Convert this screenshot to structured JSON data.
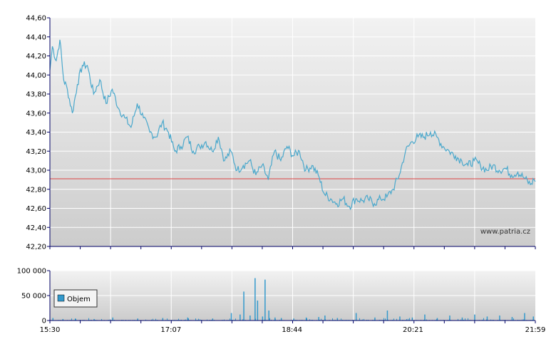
{
  "chart_data": [
    {
      "type": "line",
      "ylim": [
        42.2,
        44.6
      ],
      "y_ticks": [
        "44,60",
        "44,40",
        "44,20",
        "44,00",
        "43,80",
        "43,60",
        "43,40",
        "43,20",
        "43,00",
        "42,80",
        "42,60",
        "42,40",
        "42,20"
      ],
      "x_range": [
        "15:30",
        "21:59"
      ],
      "reference_line": 42.91,
      "grid": true,
      "colors": {
        "line": "#4aa8cc",
        "reference": "#dd4444",
        "axis": "#000066"
      },
      "watermark": "www.patria.cz",
      "series": [
        {
          "x": [
            "15:30",
            "15:32",
            "15:35",
            "15:38",
            "15:41",
            "15:44",
            "15:48",
            "15:52",
            "15:56",
            "16:00",
            "16:05",
            "16:10",
            "16:15",
            "16:20",
            "16:25",
            "16:30",
            "16:35",
            "16:40",
            "16:45",
            "16:50",
            "16:55",
            "17:00",
            "17:05",
            "17:10",
            "17:15",
            "17:20",
            "17:25",
            "17:30",
            "17:35",
            "17:40",
            "17:45",
            "17:50",
            "17:55",
            "18:00",
            "18:05",
            "18:10",
            "18:15",
            "18:20",
            "18:25",
            "18:30",
            "18:35",
            "18:40",
            "18:45",
            "18:50",
            "18:55",
            "19:00",
            "19:05",
            "19:10",
            "19:15",
            "19:20",
            "19:25",
            "19:30",
            "19:35",
            "19:40",
            "19:45",
            "19:50",
            "19:55",
            "20:00",
            "20:05",
            "20:10",
            "20:15",
            "20:20",
            "20:25",
            "20:30",
            "20:35",
            "20:40",
            "20:45",
            "20:50",
            "20:55",
            "21:00",
            "21:05",
            "21:10",
            "21:15",
            "21:20",
            "21:25",
            "21:30",
            "21:35",
            "21:40",
            "21:45",
            "21:50",
            "21:55",
            "21:58",
            "21:59"
          ],
          "values": [
            44.05,
            44.3,
            44.15,
            44.37,
            43.95,
            43.85,
            43.6,
            43.9,
            44.1,
            44.1,
            43.8,
            43.95,
            43.7,
            43.85,
            43.65,
            43.55,
            43.45,
            43.7,
            43.55,
            43.4,
            43.35,
            43.5,
            43.4,
            43.2,
            43.25,
            43.35,
            43.2,
            43.25,
            43.3,
            43.2,
            43.35,
            43.1,
            43.2,
            43.0,
            43.05,
            43.1,
            42.95,
            43.05,
            42.9,
            43.2,
            43.1,
            43.25,
            43.15,
            43.2,
            43.0,
            43.05,
            42.95,
            42.75,
            42.7,
            42.65,
            42.7,
            42.62,
            42.7,
            42.68,
            42.7,
            42.65,
            42.7,
            42.72,
            42.8,
            42.95,
            43.2,
            43.3,
            43.35,
            43.35,
            43.4,
            43.35,
            43.25,
            43.2,
            43.15,
            43.1,
            43.05,
            43.1,
            43.05,
            43.0,
            43.05,
            43.0,
            43.02,
            42.95,
            42.98,
            42.92,
            42.85,
            42.9,
            42.88
          ]
        }
      ]
    },
    {
      "type": "bar",
      "ylim": [
        0,
        100000
      ],
      "y_ticks": [
        "100 000",
        "50 000",
        "0"
      ],
      "x_ticks": [
        "15:30",
        "17:07",
        "18:44",
        "20:21",
        "21:59"
      ],
      "legend": {
        "label": "Objem",
        "placement": "left"
      },
      "colors": {
        "bar": "#3399cc"
      },
      "series": [
        {
          "x": [
            "15:32",
            "15:40",
            "15:50",
            "16:05",
            "16:20",
            "16:40",
            "17:00",
            "17:20",
            "17:40",
            "17:55",
            "18:02",
            "18:05",
            "18:10",
            "18:14",
            "18:16",
            "18:20",
            "18:22",
            "18:25",
            "18:30",
            "18:35",
            "18:45",
            "18:55",
            "19:05",
            "19:10",
            "19:20",
            "19:35",
            "19:50",
            "20:00",
            "20:10",
            "20:20",
            "20:30",
            "20:40",
            "20:50",
            "21:00",
            "21:10",
            "21:20",
            "21:30",
            "21:40",
            "21:50",
            "21:57"
          ],
          "values": [
            5000,
            3000,
            4000,
            3000,
            6000,
            4000,
            5000,
            6000,
            4000,
            15000,
            12000,
            58000,
            10000,
            85000,
            40000,
            8000,
            82000,
            20000,
            6000,
            5000,
            4000,
            6000,
            7000,
            10000,
            5000,
            15000,
            6000,
            20000,
            8000,
            6000,
            12000,
            5000,
            10000,
            6000,
            12000,
            8000,
            10000,
            7000,
            15000,
            8000
          ]
        }
      ]
    }
  ]
}
